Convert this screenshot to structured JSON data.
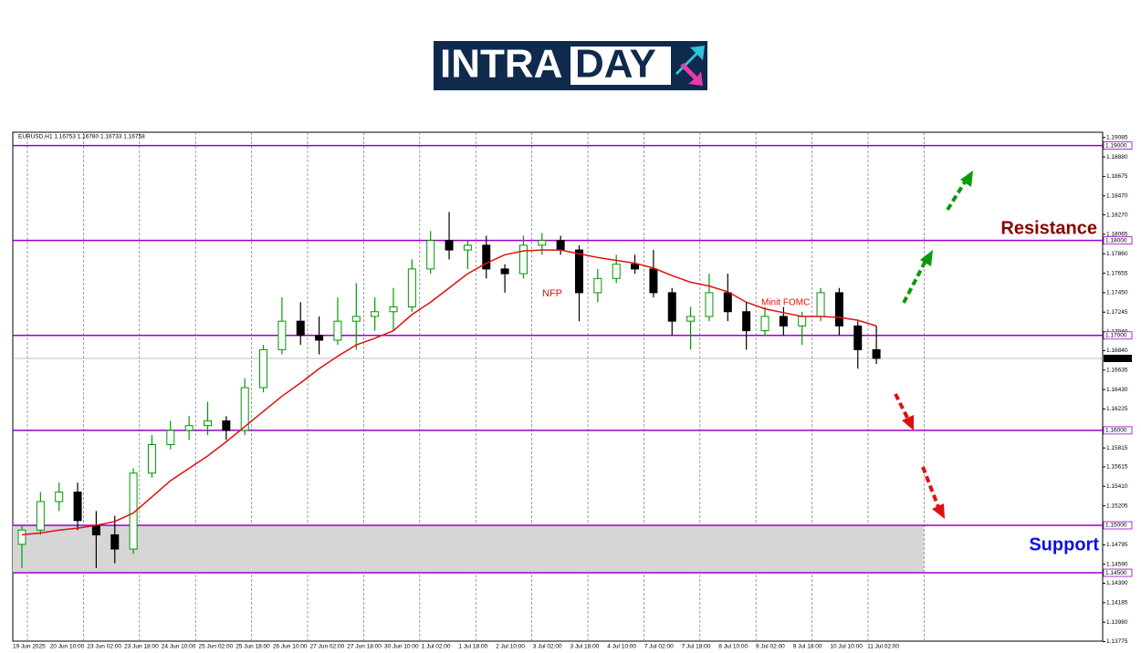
{
  "logo": {
    "part1": "INTRA",
    "part2": "DAY"
  },
  "chart_data": {
    "type": "candlestick",
    "header": "EURUSD,H1  1.16753 1.16780 1.16733 1.16758",
    "categories": [
      "19 Jun 2025",
      null,
      "20 Jun 10:00",
      null,
      "23 Jun 02:00",
      null,
      "23 Jun 18:00",
      null,
      "24 Jun 10:00",
      null,
      "25 Jun 02:00",
      null,
      "25 Jun 18:00",
      null,
      "26 Jun 10:00",
      null,
      "27 Jun 02:00",
      null,
      "27 Jun 18:00",
      null,
      "30 Jun 10:00",
      null,
      "1 Jul 02:00",
      null,
      "1 Jul 18:00",
      null,
      "2 Jul 10:00",
      null,
      "3 Jul 02:00",
      null,
      "3 Jul 18:00",
      null,
      "4 Jul 10:00",
      null,
      "7 Jul 02:00",
      null,
      "7 Jul 18:00",
      null,
      "8 Jul 10:00",
      null,
      "9 Jul 02:00",
      null,
      "9 Jul 18:00",
      null,
      "10 Jul 10:00",
      null,
      "11 Jul 02:00"
    ],
    "open": [
      1.148,
      1.1495,
      1.1525,
      1.1535,
      1.15,
      1.149,
      1.1475,
      1.1555,
      1.1585,
      1.16,
      1.1605,
      1.161,
      1.16,
      1.1645,
      1.1685,
      1.1715,
      1.17,
      1.1695,
      1.1715,
      1.172,
      1.1725,
      1.173,
      1.177,
      1.18,
      1.179,
      1.1795,
      1.177,
      1.1765,
      1.1795,
      1.18,
      1.179,
      1.1745,
      1.176,
      1.1775,
      1.177,
      1.1745,
      1.1715,
      1.172,
      1.1745,
      1.1725,
      1.1705,
      1.172,
      1.171,
      1.172,
      1.1745,
      1.171,
      1.1685
    ],
    "high": [
      1.15,
      1.1535,
      1.1545,
      1.1545,
      1.1515,
      1.151,
      1.156,
      1.1595,
      1.161,
      1.1615,
      1.163,
      1.1615,
      1.1655,
      1.169,
      1.174,
      1.1735,
      1.172,
      1.174,
      1.1755,
      1.174,
      1.175,
      1.178,
      1.181,
      1.183,
      1.18,
      1.1805,
      1.1775,
      1.1805,
      1.1808,
      1.1805,
      1.1795,
      1.177,
      1.1785,
      1.1785,
      1.179,
      1.175,
      1.173,
      1.1765,
      1.1765,
      1.1735,
      1.173,
      1.173,
      1.1725,
      1.175,
      1.175,
      1.1715,
      1.171
    ],
    "low": [
      1.1455,
      1.149,
      1.1515,
      1.1495,
      1.1455,
      1.146,
      1.147,
      1.155,
      1.158,
      1.159,
      1.1595,
      1.159,
      1.1595,
      1.164,
      1.168,
      1.169,
      1.168,
      1.169,
      1.1685,
      1.1705,
      1.1705,
      1.1725,
      1.1765,
      1.178,
      1.177,
      1.176,
      1.1745,
      1.176,
      1.1785,
      1.1785,
      1.1715,
      1.1735,
      1.1755,
      1.1765,
      1.174,
      1.17,
      1.1685,
      1.1715,
      1.1715,
      1.1685,
      1.17,
      1.17,
      1.169,
      1.1715,
      1.17,
      1.1665,
      1.167
    ],
    "close": [
      1.1495,
      1.1525,
      1.1535,
      1.1505,
      1.149,
      1.1475,
      1.1555,
      1.1585,
      1.16,
      1.1605,
      1.161,
      1.16,
      1.1645,
      1.1685,
      1.1715,
      1.17,
      1.1695,
      1.1715,
      1.172,
      1.1725,
      1.173,
      1.177,
      1.18,
      1.179,
      1.1795,
      1.177,
      1.1765,
      1.1795,
      1.18,
      1.179,
      1.1745,
      1.176,
      1.1775,
      1.177,
      1.1745,
      1.1715,
      1.172,
      1.1745,
      1.1725,
      1.1705,
      1.172,
      1.171,
      1.172,
      1.1745,
      1.171,
      1.1685,
      1.16758
    ],
    "up_color": "#009900",
    "down_color": "#000000",
    "moving_average": {
      "color": "#e01010",
      "values": [
        1.149,
        1.1492,
        1.1495,
        1.1497,
        1.15,
        1.1504,
        1.1513,
        1.153,
        1.1547,
        1.156,
        1.1573,
        1.1588,
        1.1604,
        1.162,
        1.1636,
        1.165,
        1.1665,
        1.1678,
        1.169,
        1.1697,
        1.1705,
        1.1722,
        1.1735,
        1.175,
        1.1765,
        1.1776,
        1.1785,
        1.1789,
        1.179,
        1.179,
        1.1786,
        1.1782,
        1.1779,
        1.1776,
        1.1771,
        1.1763,
        1.1756,
        1.1752,
        1.1746,
        1.1735,
        1.1728,
        1.1724,
        1.172,
        1.172,
        1.1719,
        1.1716,
        1.171
      ]
    },
    "ylim": [
      1.1378,
      1.1914
    ],
    "yticks": [
      1.19085,
      {
        "value": 1.1888,
        "label": "1.18880"
      },
      1.18675,
      {
        "value": 1.1847,
        "label": "1.18470"
      },
      {
        "value": 1.1827,
        "label": "1.18270"
      },
      1.18065,
      {
        "value": 1.1786,
        "label": "1.17860"
      },
      1.17655,
      {
        "value": 1.1745,
        "label": "1.17450"
      },
      1.17245,
      {
        "value": 1.1704,
        "label": "1.17040"
      },
      {
        "value": 1.1684,
        "label": "1.16840"
      },
      1.16635,
      {
        "value": 1.1643,
        "label": "1.16430"
      },
      1.16225,
      1.15815,
      1.15615,
      {
        "value": 1.1541,
        "label": "1.15410"
      },
      1.15205,
      1.14795,
      {
        "value": 1.1459,
        "label": "1.14590"
      },
      {
        "value": 1.1439,
        "label": "1.14390"
      },
      1.14185,
      {
        "value": 1.1398,
        "label": "1.13980"
      },
      1.13775
    ],
    "levels_color": "#9900cc",
    "levels": [
      {
        "value": 1.19,
        "label": "1.19000"
      },
      {
        "value": 1.18,
        "label": "1.18000"
      },
      {
        "value": 1.17,
        "label": "1.17000"
      },
      {
        "value": 1.16,
        "label": "1.16000"
      },
      {
        "value": 1.15,
        "label": "1.15000"
      },
      {
        "value": 1.145,
        "label": "1.14500"
      }
    ],
    "current_price": 1.16758,
    "annotations": {
      "nfp": "NFP",
      "fomc": "Minit FOMC",
      "resistance": "Resistance",
      "support": "Support"
    }
  }
}
